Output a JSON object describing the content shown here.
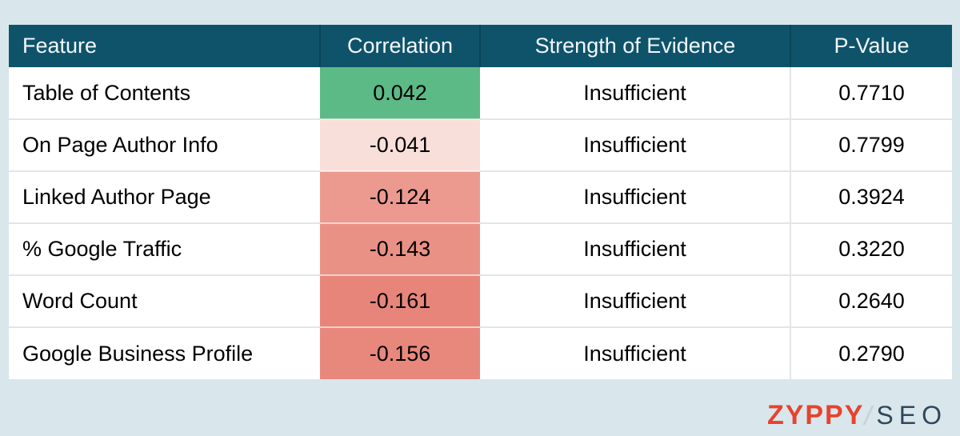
{
  "colors": {
    "page_background": "#D9E7EC",
    "header_background": "#0F536B",
    "header_text": "#F4F8FA",
    "row_background": "#FFFFFF",
    "positive_correlation": "#5CBA86",
    "negative_weak": "#F9DFDA",
    "negative_strong": "#E8857A"
  },
  "table": {
    "columns": [
      "Feature",
      "Correlation",
      "Strength of Evidence",
      "P-Value"
    ],
    "rows": [
      {
        "feature": "Table of Contents",
        "correlation": "0.042",
        "correlation_bg": "#5CBA86",
        "strength": "Insufficient",
        "p_value": "0.7710"
      },
      {
        "feature": "On Page Author Info",
        "correlation": "-0.041",
        "correlation_bg": "#F9DFDA",
        "strength": "Insufficient",
        "p_value": "0.7799"
      },
      {
        "feature": "Linked Author Page",
        "correlation": "-0.124",
        "correlation_bg": "#EC9A8F",
        "strength": "Insufficient",
        "p_value": "0.3924"
      },
      {
        "feature": "% Google Traffic",
        "correlation": "-0.143",
        "correlation_bg": "#EA9186",
        "strength": "Insufficient",
        "p_value": "0.3220"
      },
      {
        "feature": "Word Count",
        "correlation": "-0.161",
        "correlation_bg": "#E8857A",
        "strength": "Insufficient",
        "p_value": "0.2640"
      },
      {
        "feature": "Google Business Profile",
        "correlation": "-0.156",
        "correlation_bg": "#E8887D",
        "strength": "Insufficient",
        "p_value": "0.2790"
      }
    ]
  },
  "logo": {
    "brand": "ZYPPY",
    "suffix": "SEO",
    "brand_color": "#E8422E",
    "suffix_color": "#31475A"
  },
  "chart_data": {
    "type": "table",
    "title": "",
    "columns": [
      "Feature",
      "Correlation",
      "Strength of Evidence",
      "P-Value"
    ],
    "rows": [
      [
        "Table of Contents",
        0.042,
        "Insufficient",
        0.771
      ],
      [
        "On Page Author Info",
        -0.041,
        "Insufficient",
        0.7799
      ],
      [
        "Linked Author Page",
        -0.124,
        "Insufficient",
        0.3924
      ],
      [
        "% Google Traffic",
        -0.143,
        "Insufficient",
        0.322
      ],
      [
        "Word Count",
        -0.161,
        "Insufficient",
        0.264
      ],
      [
        "Google Business Profile",
        -0.156,
        "Insufficient",
        0.279
      ]
    ],
    "notes": "Correlation cells are color-coded: green for positive values, increasingly saturated red for more negative values"
  }
}
